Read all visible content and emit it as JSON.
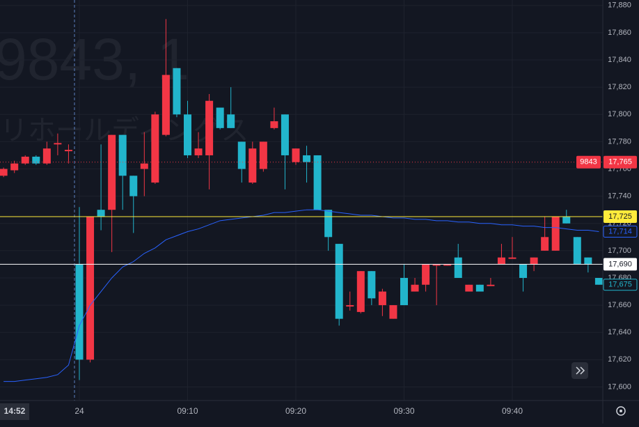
{
  "chart_data": {
    "type": "candlestick",
    "watermark_symbol": "9843, 1",
    "watermark_name": "リホールディングス",
    "current_time": "14:52",
    "categories": [
      null,
      null,
      null,
      null,
      null,
      null,
      null,
      "24",
      null,
      null,
      null,
      null,
      null,
      null,
      null,
      null,
      null,
      "09:10",
      null,
      null,
      null,
      null,
      null,
      null,
      null,
      null,
      null,
      "09:20",
      null,
      null,
      null,
      null,
      null,
      null,
      null,
      null,
      null,
      "09:30",
      null,
      null,
      null,
      null,
      null,
      null,
      null,
      null,
      null,
      "09:40",
      null,
      null,
      null,
      null,
      null,
      null,
      null,
      null
    ],
    "open": [
      17755,
      17759,
      17764,
      17769,
      17764,
      17778,
      17773,
      17690,
      17620,
      17730,
      17730,
      17785,
      17755,
      17760,
      17750,
      17785,
      17834,
      17800,
      17770,
      17770,
      17805,
      17800,
      17780,
      17750,
      17760,
      17790,
      17800,
      17765,
      17770,
      17770,
      17730,
      17705,
      17659,
      17655,
      17685,
      17660,
      17650,
      17680,
      17670,
      17675,
      17689,
      17689,
      17695,
      17670,
      17675,
      17674,
      17690,
      17694,
      17690,
      17690,
      17700,
      17700,
      17725,
      17710,
      17695,
      17680
    ],
    "high": [
      17761,
      17766,
      17770,
      17770,
      17780,
      17786,
      17778,
      17732,
      17725,
      17778,
      17785,
      17785,
      17755,
      17787,
      17802,
      17870,
      17834,
      17810,
      17787,
      17815,
      17805,
      17820,
      17780,
      17780,
      17780,
      17805,
      17800,
      17775,
      17777,
      17770,
      17730,
      17705,
      17670,
      17685,
      17685,
      17672,
      17660,
      17690,
      17680,
      17690,
      17690,
      17690,
      17705,
      17675,
      17675,
      17680,
      17705,
      17710,
      17690,
      17695,
      17725,
      17725,
      17730,
      17710,
      17695,
      17680
    ],
    "low": [
      17754,
      17757,
      17763,
      17763,
      17763,
      17770,
      17764,
      17605,
      17618,
      17715,
      17699,
      17730,
      17713,
      17740,
      17749,
      17784,
      17798,
      17768,
      17768,
      17745,
      17789,
      17790,
      17750,
      17749,
      17758,
      17789,
      17745,
      17763,
      17750,
      17730,
      17700,
      17645,
      17656,
      17654,
      17660,
      17652,
      17650,
      17660,
      17670,
      17670,
      17660,
      17689,
      17680,
      17670,
      17670,
      17674,
      17690,
      17694,
      17670,
      17685,
      17700,
      17700,
      17720,
      17690,
      17684,
      17675
    ],
    "close": [
      17760,
      17764,
      17769,
      17764,
      17775,
      17779,
      17774,
      17620,
      17725,
      17725,
      17785,
      17755,
      17740,
      17764,
      17800,
      17829,
      17800,
      17770,
      17775,
      17810,
      17790,
      17790,
      17760,
      17775,
      17780,
      17795,
      17770,
      17775,
      17765,
      17730,
      17710,
      17650,
      17660,
      17685,
      17665,
      17670,
      17660,
      17660,
      17675,
      17690,
      17690,
      17690,
      17680,
      17675,
      17670,
      17675,
      17695,
      17695,
      17680,
      17695,
      17710,
      17725,
      17720,
      17690,
      17690,
      17675
    ],
    "up_color": "#f23645",
    "down_color": "#22b5cc",
    "moving_average": {
      "color": "#2962ff",
      "values": [
        17604,
        17604,
        17605,
        17606,
        17607,
        17609,
        17616,
        17645,
        17660,
        17670,
        17680,
        17688,
        17692,
        17698,
        17702,
        17708,
        17711,
        17714,
        17716,
        17719,
        17722,
        17723,
        17724,
        17725,
        17726,
        17728,
        17728,
        17729,
        17730,
        17730,
        17729,
        17728,
        17727,
        17726,
        17726,
        17725,
        17724,
        17724,
        17723,
        17723,
        17722,
        17722,
        17721,
        17721,
        17720,
        17720,
        17719,
        17719,
        17718,
        17718,
        17717,
        17717,
        17716,
        17715,
        17715,
        17714
      ]
    },
    "ylim": [
      17590,
      17884
    ],
    "yticks": [
      {
        "value": 17600,
        "label": "17,600"
      },
      {
        "value": 17620,
        "label": "17,620"
      },
      {
        "value": 17640,
        "label": "17,640"
      },
      {
        "value": 17660,
        "label": "17,660"
      },
      {
        "value": 17680,
        "label": "17,680"
      },
      {
        "value": 17700,
        "label": "17,700"
      },
      {
        "value": 17720,
        "label": "17,720"
      },
      {
        "value": 17740,
        "label": "17,740"
      },
      {
        "value": 17760,
        "label": "17,760"
      },
      {
        "value": 17780,
        "label": "17,780"
      },
      {
        "value": 17800,
        "label": "17,800"
      },
      {
        "value": 17820,
        "label": "17,820"
      },
      {
        "value": 17840,
        "label": "17,840"
      },
      {
        "value": 17860,
        "label": "17,860"
      },
      {
        "value": 17880,
        "label": "17,880"
      }
    ],
    "grid": true,
    "price_lines": [
      {
        "value": 17765,
        "label": "17,765",
        "tag": "9843",
        "color": "#f23645",
        "text_color": "#ffffff",
        "dotted": true
      },
      {
        "value": 17725,
        "label": "17,725",
        "color": "#ffeb3b",
        "text_color": "#131722",
        "dotted": false
      },
      {
        "value": 17690,
        "label": "17,690",
        "color": "#ffffff",
        "text_color": "#131722",
        "dotted": false
      }
    ],
    "ma_label": {
      "value": 17714,
      "label": "17,714",
      "color": "#2962ff"
    },
    "last_label": {
      "value": 17675,
      "label": "17,675",
      "color": "#22b5cc"
    }
  }
}
